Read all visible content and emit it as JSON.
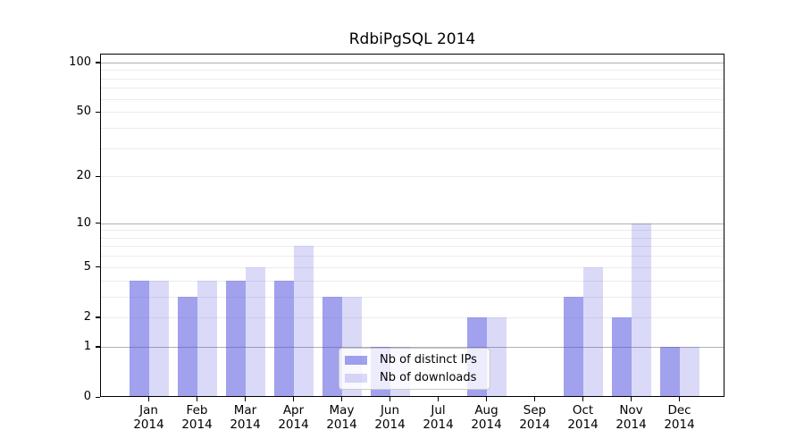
{
  "chart_data": {
    "type": "bar",
    "title": "RdbiPgSQL 2014",
    "categories": [
      "Jan",
      "Feb",
      "Mar",
      "Apr",
      "May",
      "Jun",
      "Jul",
      "Aug",
      "Sep",
      "Oct",
      "Nov",
      "Dec"
    ],
    "category_year": "2014",
    "series": [
      {
        "name": "Nb of distinct IPs",
        "color": "rgba(68,68,221,0.5)",
        "values": [
          4,
          3,
          4,
          4,
          3,
          1,
          0,
          2,
          0,
          3,
          2,
          1
        ]
      },
      {
        "name": "Nb of downloads",
        "color": "rgba(68,68,221,0.2)",
        "values": [
          4,
          4,
          5,
          7,
          3,
          1,
          0,
          2,
          0,
          5,
          10,
          1
        ]
      }
    ],
    "yscale": "log1p",
    "ylim": [
      0,
      113
    ],
    "yticks": [
      0,
      1,
      2,
      5,
      10,
      20,
      50,
      100
    ],
    "grid": {
      "major_values": [
        1,
        10,
        100
      ],
      "minor_values": [
        2,
        3,
        4,
        5,
        6,
        7,
        8,
        9,
        20,
        30,
        40,
        50,
        60,
        70,
        80,
        90
      ],
      "major_color": "#b0b0b0",
      "minor_color": "#ececec"
    },
    "legend_position": "lower center",
    "axis_color": "#000000",
    "background_color": "#ffffff"
  }
}
